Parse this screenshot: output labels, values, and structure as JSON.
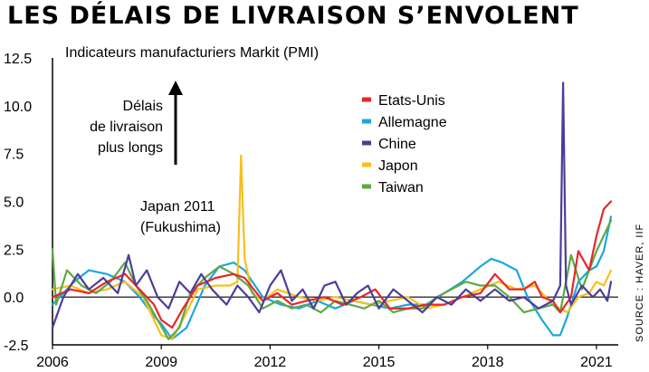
{
  "title": "LES DÉLAIS DE LIVRAISON S’ENVOLENT",
  "source": "SOURCE : HAVER, IIF",
  "chart_data": {
    "type": "line",
    "subtitle": "Indicateurs manufacturiers Markit (PMI)",
    "xlim": [
      2006.0,
      2021.6
    ],
    "ylim": [
      -2.5,
      12.5
    ],
    "x_ticks": [
      2006,
      2009,
      2012,
      2015,
      2018,
      2021
    ],
    "y_ticks": [
      -2.5,
      0.0,
      2.5,
      5.0,
      7.5,
      10.0,
      12.5
    ],
    "x_tick_labels": [
      "2006",
      "2009",
      "2012",
      "2015",
      "2018",
      "2021"
    ],
    "y_tick_labels": [
      "-2.5",
      "0.0",
      "2.5",
      "5.0",
      "7.5",
      "10.0",
      "12.5"
    ],
    "arrow_annotation": [
      "Délais",
      "de livraison",
      "plus longs"
    ],
    "event_annotation": [
      "Japan 2011",
      "(Fukushima)"
    ],
    "legend_position": "top-right",
    "series": [
      {
        "name": "Etats-Unis",
        "color": "#e8262b",
        "x": [
          2006.0,
          2006.5,
          2007.0,
          2007.5,
          2008.0,
          2008.4,
          2008.8,
          2009.0,
          2009.3,
          2009.6,
          2010.0,
          2010.5,
          2011.0,
          2011.3,
          2011.8,
          2012.2,
          2012.6,
          2013.0,
          2013.5,
          2014.0,
          2014.5,
          2014.9,
          2015.3,
          2015.8,
          2016.3,
          2016.8,
          2017.3,
          2017.8,
          2018.2,
          2018.6,
          2019.0,
          2019.3,
          2019.5,
          2019.8,
          2020.0,
          2020.3,
          2020.5,
          2020.8,
          2021.0,
          2021.2,
          2021.4
        ],
        "y": [
          0.0,
          0.4,
          0.2,
          0.8,
          1.2,
          0.4,
          -0.4,
          -1.2,
          -1.6,
          -0.6,
          0.6,
          1.0,
          1.2,
          1.0,
          -0.2,
          0.2,
          -0.4,
          -0.2,
          0.0,
          -0.4,
          0.0,
          0.4,
          -0.6,
          -0.6,
          -0.4,
          -0.4,
          0.0,
          0.2,
          1.2,
          0.4,
          0.4,
          0.8,
          0.0,
          -0.2,
          -0.8,
          0.0,
          2.4,
          1.4,
          3.2,
          4.6,
          5.0
        ]
      },
      {
        "name": "Allemagne",
        "color": "#1aa7df",
        "x": [
          2006.0,
          2006.6,
          2007.0,
          2007.5,
          2008.0,
          2008.4,
          2008.8,
          2009.0,
          2009.3,
          2009.7,
          2010.2,
          2010.6,
          2011.0,
          2011.3,
          2011.8,
          2012.3,
          2012.8,
          2013.3,
          2013.8,
          2014.3,
          2014.8,
          2015.3,
          2015.8,
          2016.3,
          2016.8,
          2017.3,
          2017.8,
          2018.1,
          2018.4,
          2018.8,
          2019.1,
          2019.5,
          2019.8,
          2020.0,
          2020.2,
          2020.5,
          2020.8,
          2021.0,
          2021.2,
          2021.4
        ],
        "y": [
          -0.4,
          0.8,
          1.4,
          1.2,
          0.8,
          0.0,
          -1.0,
          -1.4,
          -2.2,
          -1.6,
          0.6,
          1.6,
          1.8,
          1.4,
          0.0,
          -0.4,
          -0.6,
          -0.2,
          -0.6,
          -0.2,
          -0.4,
          -0.6,
          -0.4,
          -0.4,
          0.2,
          0.8,
          1.6,
          2.0,
          1.8,
          1.4,
          0.0,
          -1.2,
          -2.0,
          -2.0,
          -1.0,
          0.8,
          1.4,
          1.6,
          2.4,
          4.2
        ]
      },
      {
        "name": "Chine",
        "color": "#4b3e96",
        "x": [
          2006.0,
          2006.3,
          2006.7,
          2007.0,
          2007.4,
          2007.8,
          2008.1,
          2008.3,
          2008.6,
          2008.9,
          2009.2,
          2009.5,
          2009.8,
          2010.1,
          2010.4,
          2010.8,
          2011.1,
          2011.4,
          2011.7,
          2012.0,
          2012.3,
          2012.6,
          2012.9,
          2013.2,
          2013.5,
          2013.8,
          2014.1,
          2014.4,
          2014.7,
          2015.0,
          2015.4,
          2015.8,
          2016.2,
          2016.6,
          2017.0,
          2017.4,
          2017.8,
          2018.2,
          2018.6,
          2019.0,
          2019.4,
          2019.8,
          2020.0,
          2020.08,
          2020.16,
          2020.3,
          2020.6,
          2020.9,
          2021.1,
          2021.3,
          2021.4
        ],
        "y": [
          -1.6,
          0.0,
          1.2,
          0.4,
          1.0,
          0.2,
          2.2,
          0.6,
          1.4,
          0.0,
          -0.6,
          0.8,
          0.2,
          1.2,
          0.4,
          -0.4,
          0.6,
          0.0,
          -0.8,
          0.6,
          1.4,
          -0.2,
          0.4,
          -0.6,
          0.6,
          0.8,
          -0.4,
          0.2,
          0.6,
          -0.6,
          0.4,
          -0.2,
          -0.8,
          0.0,
          -0.4,
          0.4,
          -0.2,
          0.4,
          -0.2,
          0.0,
          -0.6,
          -0.2,
          0.6,
          11.2,
          0.6,
          -0.4,
          0.6,
          0.0,
          0.4,
          -0.2,
          0.8
        ]
      },
      {
        "name": "Japon",
        "color": "#f8bf1c",
        "x": [
          2006.0,
          2006.5,
          2007.0,
          2007.5,
          2008.0,
          2008.5,
          2008.8,
          2009.0,
          2009.3,
          2009.7,
          2010.0,
          2010.5,
          2010.9,
          2011.1,
          2011.2,
          2011.3,
          2011.5,
          2011.8,
          2012.2,
          2012.8,
          2013.3,
          2013.8,
          2014.3,
          2014.8,
          2015.3,
          2015.8,
          2016.3,
          2016.8,
          2017.3,
          2017.8,
          2018.3,
          2018.8,
          2019.3,
          2019.8,
          2020.2,
          2020.5,
          2020.8,
          2021.0,
          2021.2,
          2021.4
        ],
        "y": [
          0.4,
          0.6,
          0.2,
          0.4,
          0.8,
          0.0,
          -1.2,
          -2.0,
          -2.2,
          -0.8,
          0.4,
          0.6,
          0.6,
          0.8,
          7.4,
          2.0,
          0.2,
          -0.2,
          0.4,
          0.0,
          -0.2,
          0.0,
          -0.2,
          -0.4,
          -0.2,
          0.0,
          -0.6,
          -0.4,
          0.0,
          0.4,
          0.8,
          0.4,
          0.6,
          -0.4,
          -0.8,
          0.0,
          0.2,
          0.8,
          0.6,
          1.4
        ]
      },
      {
        "name": "Taiwan",
        "color": "#5ea845",
        "x": [
          2006.0,
          2006.1,
          2006.4,
          2006.8,
          2007.2,
          2007.6,
          2008.0,
          2008.3,
          2008.6,
          2008.9,
          2009.2,
          2009.5,
          2009.8,
          2010.2,
          2010.6,
          2011.0,
          2011.4,
          2011.8,
          2012.2,
          2012.6,
          2013.0,
          2013.4,
          2013.8,
          2014.2,
          2014.6,
          2015.0,
          2015.4,
          2015.8,
          2016.2,
          2016.6,
          2017.0,
          2017.4,
          2017.8,
          2018.2,
          2018.6,
          2019.0,
          2019.4,
          2019.8,
          2020.0,
          2020.3,
          2020.6,
          2021.0,
          2021.2,
          2021.4
        ],
        "y": [
          2.5,
          -0.4,
          1.4,
          0.6,
          0.2,
          0.8,
          1.8,
          0.6,
          -0.2,
          -1.2,
          -2.2,
          -1.6,
          0.2,
          1.0,
          1.6,
          1.2,
          0.6,
          -0.6,
          -0.2,
          -0.6,
          -0.4,
          -0.8,
          -0.2,
          -0.4,
          -0.6,
          -0.2,
          -0.8,
          -0.6,
          -0.6,
          0.0,
          0.4,
          0.8,
          0.6,
          0.6,
          0.0,
          -0.8,
          -0.6,
          -0.4,
          -0.8,
          2.2,
          0.4,
          2.4,
          3.2,
          4.0
        ]
      }
    ]
  }
}
